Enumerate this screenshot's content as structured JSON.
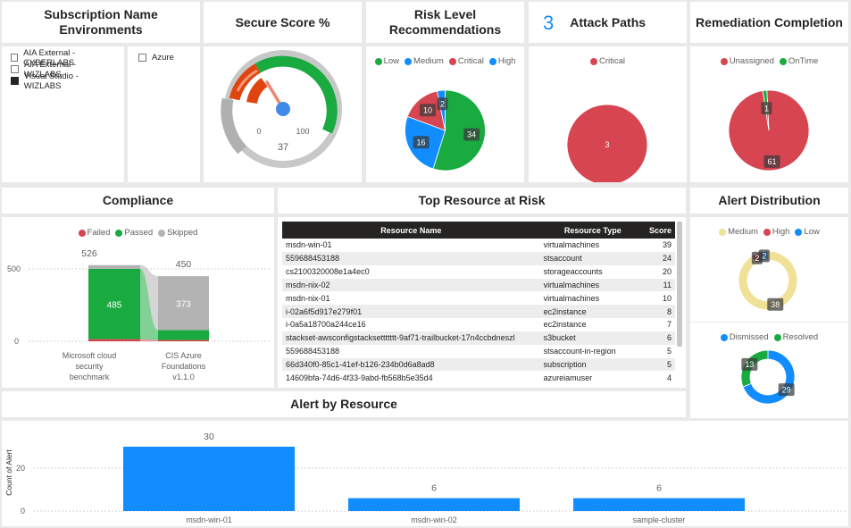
{
  "subscription": {
    "title": "Subscription Name Environments",
    "left_items": [
      {
        "label": "AIA External - CYBERLABS",
        "checked": false
      },
      {
        "label": "AIA External - WIZLABS",
        "checked": false
      },
      {
        "label": "Visual Studio - WIZLABS",
        "checked": true
      }
    ],
    "right_items": [
      {
        "label": "Azure",
        "checked": false
      }
    ]
  },
  "secure_score": {
    "title": "Secure Score %",
    "min_label": "0",
    "max_label": "100",
    "value": 37,
    "value_label": "37"
  },
  "risk_level": {
    "title": "Risk Level Recommendations",
    "legend": [
      {
        "name": "Low",
        "color": "#1aab40"
      },
      {
        "name": "Medium",
        "color": "#118dff"
      },
      {
        "name": "Critical",
        "color": "#d64550"
      },
      {
        "name": "High",
        "color": "#118dff"
      }
    ]
  },
  "attack_paths": {
    "count": "3",
    "title": "Attack Paths",
    "legend": [
      {
        "name": "Critical",
        "color": "#d64550"
      }
    ]
  },
  "remediation": {
    "title": "Remediation Completion",
    "legend": [
      {
        "name": "Unassigned",
        "color": "#d64550"
      },
      {
        "name": "OnTime",
        "color": "#1aab40"
      }
    ]
  },
  "compliance": {
    "title": "Compliance",
    "legend": [
      {
        "name": "Failed",
        "color": "#d64550"
      },
      {
        "name": "Passed",
        "color": "#1aab40"
      },
      {
        "name": "Skipped",
        "color": "#b3b3b3"
      }
    ],
    "yticks": [
      "500",
      "0"
    ]
  },
  "top_resource": {
    "title": "Top Resource at Risk",
    "columns": [
      "Resource Name",
      "Resource Type",
      "Score"
    ],
    "rows": [
      [
        "msdn-win-01",
        "virtualmachines",
        "39"
      ],
      [
        "559688453188",
        "stsaccount",
        "24"
      ],
      [
        "cs2100320008e1a4ec0",
        "storageaccounts",
        "20"
      ],
      [
        "msdn-nix-02",
        "virtualmachines",
        "11"
      ],
      [
        "msdn-nix-01",
        "virtualmachines",
        "10"
      ],
      [
        "i-02a6f5d917e279f01",
        "ec2instance",
        "8"
      ],
      [
        "i-0a5a18700a244ce16",
        "ec2instance",
        "7"
      ],
      [
        "stackset-awsconfigstacksettttttt-9af71-trailbucket-17n4ccbdneszl",
        "s3bucket",
        "6"
      ],
      [
        "559688453188",
        "stsaccount-in-region",
        "5"
      ],
      [
        "66d340f0-85c1-41ef-b126-234b0d6a8ad8",
        "subscription",
        "5"
      ],
      [
        "14609bfa-74d6-4f33-9abd-fb568b5e35d4",
        "azureiamuser",
        "4"
      ]
    ]
  },
  "alert_distribution": {
    "title": "Alert Distribution",
    "legend1": [
      {
        "name": "Medium",
        "color": "#f0e199"
      },
      {
        "name": "High",
        "color": "#d64550"
      },
      {
        "name": "Low",
        "color": "#118dff"
      }
    ],
    "legend2": [
      {
        "name": "Dismissed",
        "color": "#118dff"
      },
      {
        "name": "Resolved",
        "color": "#1aab40"
      }
    ]
  },
  "alert_by_resource": {
    "title": "Alert by Resource",
    "ylabel": "Count of Alert"
  },
  "chart_data": [
    {
      "type": "pie",
      "title": "Risk Level Recommendations",
      "categories": [
        "Low",
        "Medium",
        "Critical",
        "High"
      ],
      "values": [
        34,
        16,
        10,
        2
      ],
      "colors": [
        "#1aab40",
        "#118dff",
        "#d64550",
        "#118dff"
      ]
    },
    {
      "type": "pie",
      "title": "Attack Paths",
      "categories": [
        "Critical"
      ],
      "values": [
        3
      ],
      "colors": [
        "#d64550"
      ]
    },
    {
      "type": "pie",
      "title": "Remediation Completion",
      "categories": [
        "Unassigned",
        "OnTime"
      ],
      "values": [
        61,
        1
      ],
      "colors": [
        "#d64550",
        "#1aab40"
      ]
    },
    {
      "type": "bar",
      "title": "Compliance",
      "categories": [
        "Microsoft cloud security benchmark",
        "CIS Azure Foundations v1.1.0"
      ],
      "series": [
        {
          "name": "Failed",
          "values": [
            15,
            9
          ],
          "color": "#d64550"
        },
        {
          "name": "Passed",
          "values": [
            485,
            68
          ],
          "color": "#1aab40"
        },
        {
          "name": "Skipped",
          "values": [
            26,
            373
          ],
          "color": "#b3b3b3"
        }
      ],
      "totals": [
        526,
        450
      ],
      "ylim": [
        0,
        526
      ]
    },
    {
      "type": "pie",
      "title": "Alert Distribution",
      "categories": [
        "Medium",
        "High",
        "Low"
      ],
      "values": [
        38,
        2,
        2
      ],
      "colors": [
        "#f0e199",
        "#d64550",
        "#118dff"
      ]
    },
    {
      "type": "pie",
      "title": "Alert Distribution",
      "categories": [
        "Dismissed",
        "Resolved"
      ],
      "values": [
        29,
        13
      ],
      "colors": [
        "#118dff",
        "#1aab40"
      ]
    },
    {
      "type": "bar",
      "title": "Alert by Resource",
      "categories": [
        "msdn-win-01",
        "msdn-win-02",
        "sample-cluster"
      ],
      "values": [
        30,
        6,
        6
      ],
      "ylabel": "Count of Alert",
      "yticks": [
        0,
        20
      ],
      "ylim": [
        0,
        32
      ]
    }
  ]
}
